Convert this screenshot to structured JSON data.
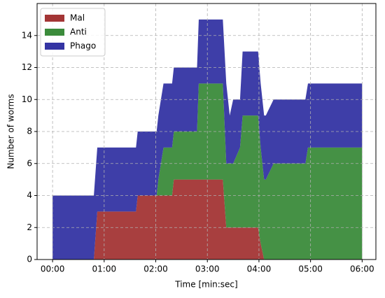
{
  "chart_data": {
    "type": "stackedarea",
    "xlabel": "Time [min:sec]",
    "ylabel": "Number of worms",
    "x": [
      0,
      48,
      52,
      97,
      99,
      121,
      123,
      126,
      129,
      139,
      141,
      168,
      170,
      198,
      202,
      206,
      210,
      218,
      221,
      239,
      242,
      246,
      248,
      257,
      294,
      297,
      360
    ],
    "series": [
      {
        "name": "Mal",
        "color": "#a33535",
        "values": [
          0,
          0,
          3,
          3,
          4,
          4,
          4,
          4,
          4,
          4,
          5,
          5,
          5,
          5,
          2,
          2,
          2,
          2,
          2,
          2,
          1,
          0,
          0,
          0,
          0,
          0,
          0
        ]
      },
      {
        "name": "Anti",
        "color": "#3b8b3b",
        "values": [
          0,
          0,
          0,
          0,
          0,
          0,
          1,
          2,
          3,
          3,
          3,
          3,
          6,
          6,
          4,
          4,
          4,
          5,
          7,
          7,
          6,
          5,
          5,
          6,
          6,
          7,
          7
        ]
      },
      {
        "name": "Phago",
        "color": "#3434a3",
        "values": [
          4,
          4,
          4,
          4,
          4,
          4,
          4,
          4,
          4,
          4,
          4,
          4,
          4,
          4,
          5,
          3,
          4,
          3,
          4,
          4,
          4,
          4,
          4,
          4,
          4,
          4,
          4
        ]
      }
    ],
    "xlim": [
      -18,
      376
    ],
    "xticks": [
      {
        "value": 0,
        "label": "00:00"
      },
      {
        "value": 60,
        "label": "01:00"
      },
      {
        "value": 120,
        "label": "02:00"
      },
      {
        "value": 180,
        "label": "03:00"
      },
      {
        "value": 240,
        "label": "04:00"
      },
      {
        "value": 300,
        "label": "05:00"
      },
      {
        "value": 360,
        "label": "06:00"
      }
    ],
    "ylim": [
      0,
      16
    ],
    "yticks": [
      0,
      2,
      4,
      6,
      8,
      10,
      12,
      14
    ],
    "grid": true,
    "legend": "upper-left"
  }
}
